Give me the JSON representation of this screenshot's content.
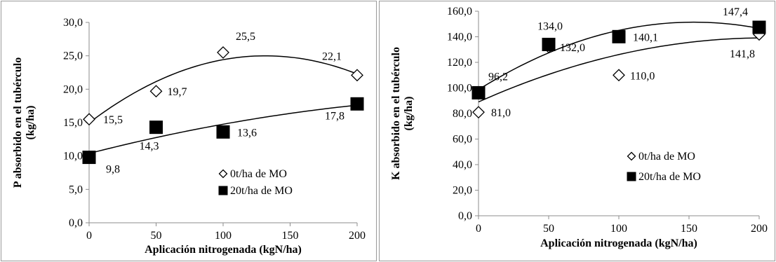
{
  "chart_data": [
    {
      "type": "scatter",
      "title": "",
      "xlabel": "Aplicación nitrogenada (kgN/ha)",
      "ylabel_line1": "P absorbido en el tubérculo",
      "ylabel_line2": "(kg/ha)",
      "xlim": [
        0,
        200
      ],
      "ylim": [
        0,
        30
      ],
      "x_ticks": [
        0,
        50,
        100,
        150,
        200
      ],
      "x_tick_labels": [
        "0",
        "50",
        "100",
        "150",
        "200"
      ],
      "y_ticks": [
        0,
        5,
        10,
        15,
        20,
        25,
        30
      ],
      "y_tick_labels": [
        "0,0",
        "5,0",
        "10,0",
        "15,0",
        "20,0",
        "25,0",
        "30,0"
      ],
      "grid": false,
      "legend_position": "center-right",
      "series": [
        {
          "name": "0t/ha de MO",
          "marker": "diamond-open",
          "x": [
            0,
            50,
            100,
            200
          ],
          "y": [
            15.5,
            19.7,
            25.5,
            22.1
          ],
          "labels": [
            "15,5",
            "19,7",
            "25,5",
            "22,1"
          ],
          "trend": "polynomial-2"
        },
        {
          "name": "20t/ha de MO",
          "marker": "square-filled",
          "x": [
            0,
            50,
            100,
            200
          ],
          "y": [
            9.8,
            14.3,
            13.6,
            17.8
          ],
          "labels": [
            "9,8",
            "14,3",
            "13,6",
            "17,8"
          ],
          "trend": "polynomial-2"
        }
      ]
    },
    {
      "type": "scatter",
      "title": "",
      "xlabel": "Aplicación nitrogenada (kgN/ha)",
      "ylabel_line1": "K absorbido en el tubérculo",
      "ylabel_line2": "(kg/ha)",
      "xlim": [
        0,
        200
      ],
      "ylim": [
        0,
        160
      ],
      "x_ticks": [
        0,
        50,
        100,
        150,
        200
      ],
      "x_tick_labels": [
        "0",
        "50",
        "100",
        "150",
        "200"
      ],
      "y_ticks": [
        0,
        20,
        40,
        60,
        80,
        100,
        120,
        140,
        160
      ],
      "y_tick_labels": [
        "0,0",
        "20,0",
        "40,0",
        "60,0",
        "80,0",
        "100,0",
        "120,0",
        "140,0",
        "160,0"
      ],
      "grid": false,
      "legend_position": "bottom-right",
      "series": [
        {
          "name": "0t/ha de MO",
          "marker": "diamond-open",
          "x": [
            0,
            50,
            100,
            200
          ],
          "y": [
            81.0,
            132.0,
            110.0,
            141.8
          ],
          "labels": [
            "81,0",
            "132,0",
            "110,0",
            "141,8"
          ],
          "trend": "polynomial-2"
        },
        {
          "name": "20t/ha de MO",
          "marker": "square-filled",
          "x": [
            0,
            50,
            100,
            200
          ],
          "y": [
            96.2,
            134.0,
            140.1,
            147.4
          ],
          "labels": [
            "96,2",
            "134,0",
            "140,1",
            "147,4"
          ],
          "trend": "polynomial-2"
        }
      ]
    }
  ]
}
